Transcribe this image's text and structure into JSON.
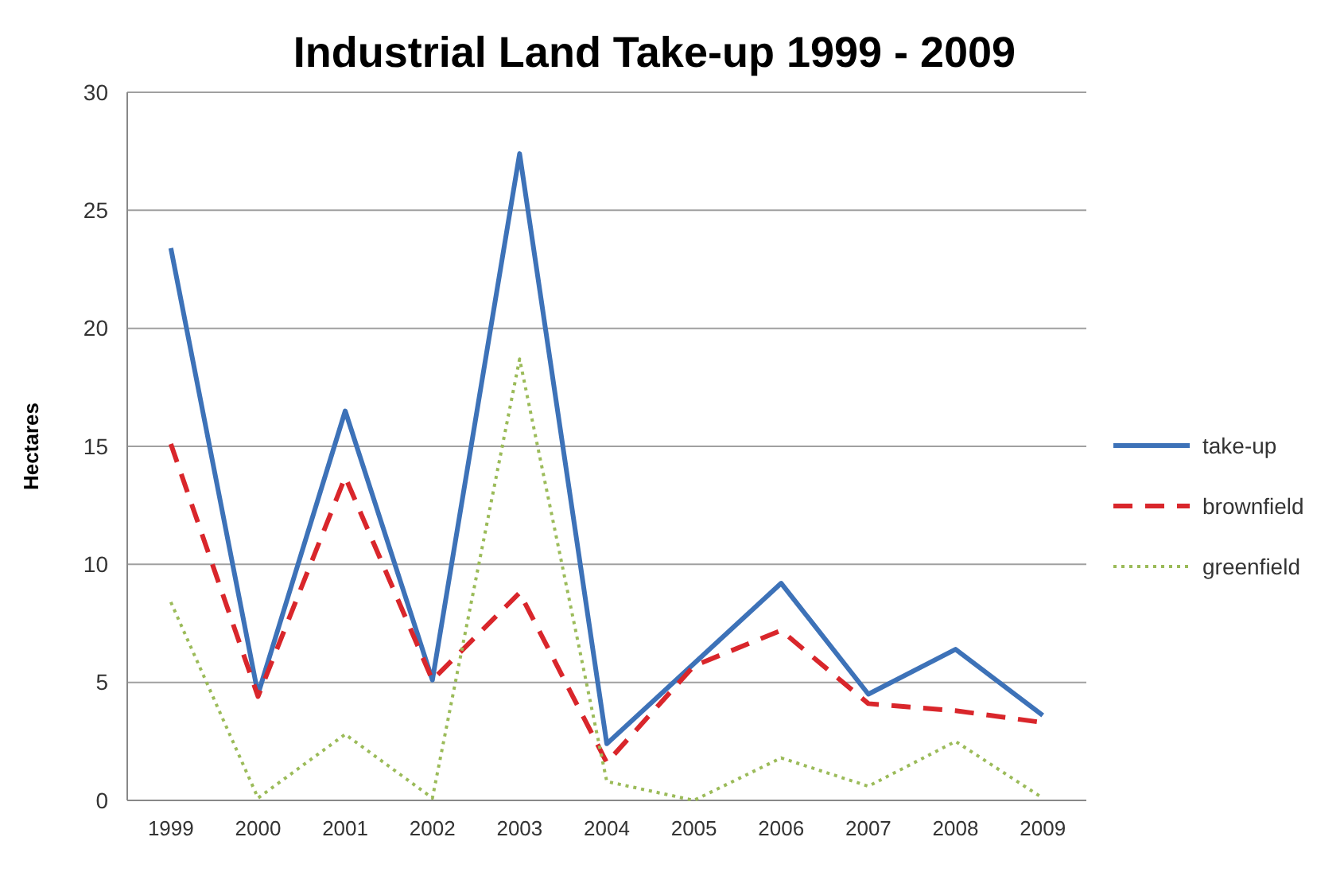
{
  "chart_data": {
    "type": "line",
    "title": "Industrial Land Take-up 1999 - 2009",
    "ylabel": "Hectares",
    "categories": [
      "1999",
      "2000",
      "2001",
      "2002",
      "2003",
      "2004",
      "2005",
      "2006",
      "2007",
      "2008",
      "2009"
    ],
    "series": [
      {
        "name": "take-up",
        "color": "#3d72b8",
        "line_style": "solid",
        "values": [
          23.4,
          4.5,
          16.5,
          5.1,
          27.4,
          2.4,
          5.8,
          9.2,
          4.5,
          6.4,
          3.6
        ]
      },
      {
        "name": "brownfield",
        "color": "#d9262b",
        "line_style": "dashed",
        "values": [
          15.1,
          4.4,
          13.7,
          5.1,
          8.8,
          1.6,
          5.7,
          7.2,
          4.1,
          3.8,
          3.3
        ]
      },
      {
        "name": "greenfield",
        "color": "#9bbb59",
        "line_style": "dotted",
        "values": [
          8.4,
          0.1,
          2.8,
          0.1,
          18.7,
          0.8,
          0,
          1.8,
          0.6,
          2.5,
          0.1
        ]
      }
    ],
    "ylim": [
      0,
      30
    ],
    "yticks": [
      0,
      5,
      10,
      15,
      20,
      25,
      30
    ],
    "grid": "y",
    "legend": "right",
    "marker": "none"
  }
}
